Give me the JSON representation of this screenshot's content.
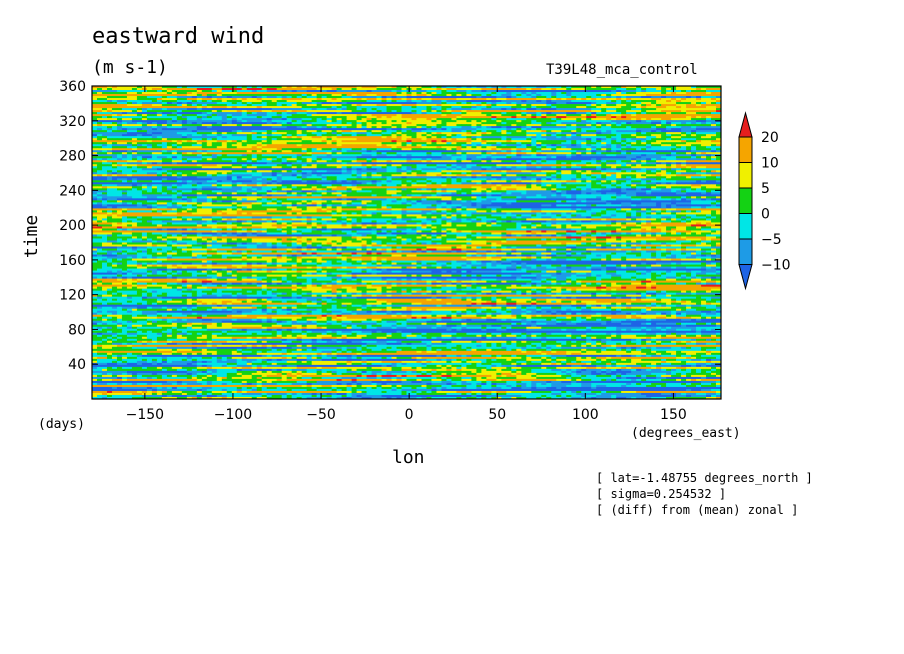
{
  "header": {
    "title": "eastward wind",
    "units": "(m s-1)",
    "run_name": "T39L48_mca_control"
  },
  "annotations": [
    "[ lat=-1.48755 degrees_north ]",
    "[ sigma=0.254532 ]",
    "[ (diff) from (mean) zonal ]"
  ],
  "chart_data": {
    "type": "heatmap",
    "title": "eastward wind",
    "units": "(m s-1)",
    "xlabel": "lon",
    "x_units": "(degrees_east)",
    "ylabel": "time",
    "y_units": "(days)",
    "xlim": [
      -180,
      177
    ],
    "ylim": [
      0,
      360
    ],
    "x_ticks": [
      -150,
      -100,
      -50,
      0,
      50,
      100,
      150
    ],
    "y_ticks": [
      40,
      80,
      120,
      160,
      200,
      240,
      280,
      320,
      360
    ],
    "colorbar": {
      "levels": [
        -10,
        -5,
        0,
        5,
        10,
        20
      ],
      "colors": [
        "#1e64e6",
        "#1e9be6",
        "#00e6e6",
        "#14d214",
        "#f0f000",
        "#f5a500",
        "#e61e1e"
      ],
      "extend": "both"
    }
  }
}
